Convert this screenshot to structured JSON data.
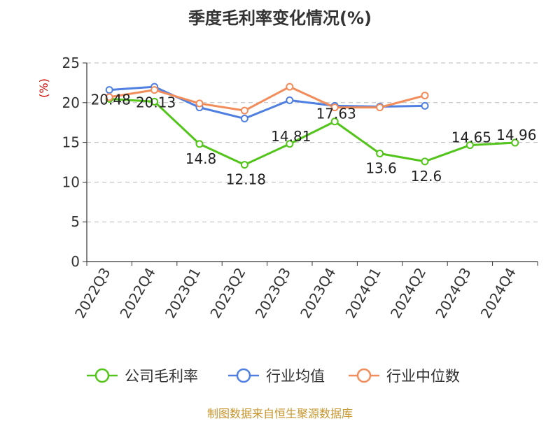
{
  "chart_data": {
    "type": "line",
    "title": "季度毛利率变化情况(%)",
    "ylabel": "(%)",
    "categories": [
      "2022Q3",
      "2022Q4",
      "2023Q1",
      "2023Q2",
      "2023Q3",
      "2023Q4",
      "2024Q1",
      "2024Q2",
      "2024Q3",
      "2024Q4"
    ],
    "ylim": [
      0,
      25
    ],
    "yticks": [
      "0",
      "5",
      "10",
      "15",
      "20",
      "25"
    ],
    "grid": true,
    "legend_position": "bottom",
    "series": [
      {
        "name": "公司毛利率",
        "color": "#52c41a",
        "values": [
          20.48,
          20.13,
          14.8,
          12.18,
          14.81,
          17.63,
          13.6,
          12.6,
          14.65,
          14.96
        ],
        "labels": [
          "20.48",
          "20.13",
          "14.8",
          "12.18",
          "14.81",
          "17.63",
          "13.6",
          "12.6",
          "14.65",
          "14.96"
        ]
      },
      {
        "name": "行业均值",
        "color": "#4f7fe0",
        "values": [
          21.6,
          22.0,
          19.4,
          18.0,
          20.3,
          19.6,
          19.5,
          19.6,
          null,
          null
        ]
      },
      {
        "name": "行业中位数",
        "color": "#f28c5a",
        "values": [
          20.7,
          21.6,
          19.9,
          19.0,
          22.0,
          19.4,
          19.4,
          20.9,
          null,
          null
        ]
      }
    ]
  },
  "footer": {
    "source": "制图数据来自恒生聚源数据库"
  }
}
